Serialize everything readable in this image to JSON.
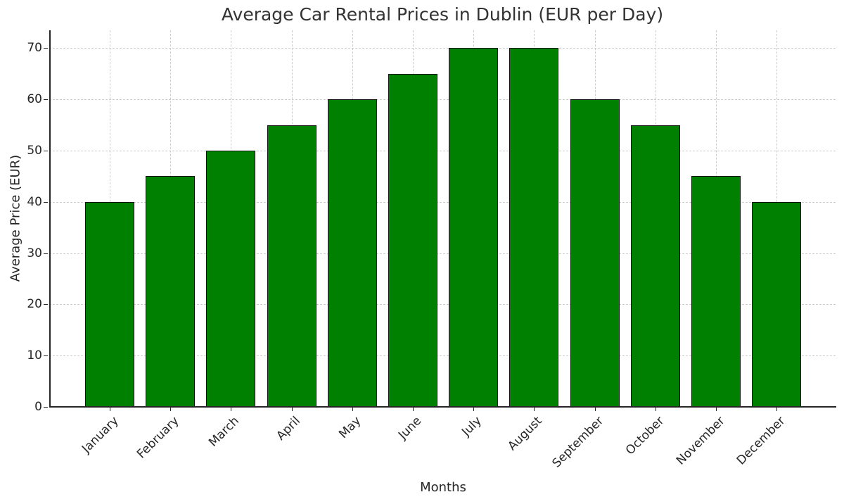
{
  "chart_data": {
    "type": "bar",
    "title": "Average Car Rental Prices in Dublin (EUR per Day)",
    "xlabel": "Months",
    "ylabel": "Average Price (EUR)",
    "categories": [
      "January",
      "February",
      "March",
      "April",
      "May",
      "June",
      "July",
      "August",
      "September",
      "October",
      "November",
      "December"
    ],
    "values": [
      40,
      45,
      50,
      55,
      60,
      65,
      70,
      70,
      60,
      55,
      45,
      40
    ],
    "ylim": [
      0,
      73.5
    ],
    "yticks": [
      0,
      10,
      20,
      30,
      40,
      50,
      60,
      70
    ],
    "grid": true,
    "bar_color": "#008000",
    "edge_color": "#000000",
    "legend": null
  }
}
